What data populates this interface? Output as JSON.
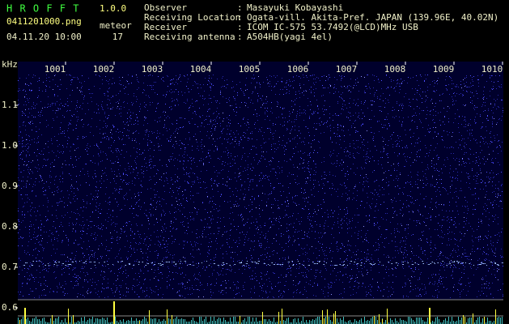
{
  "header": {
    "title": "H R O F F T",
    "version": "1.0.0",
    "filename": "0411201000.png",
    "meteor_label": "meteor",
    "datetime": "04.11.20 10:00",
    "meteor_count": "17"
  },
  "info": [
    {
      "label": "Observer",
      "value": "Masayuki Kobayashi"
    },
    {
      "label": "Receiving Location",
      "value": "Ogata-vill. Akita-Pref. JAPAN (139.96E, 40.02N)"
    },
    {
      "label": "Receiver",
      "value": "ICOM IC-575 53.7492(@LCD)MHz USB"
    },
    {
      "label": "Receiving antenna",
      "value": "A504HB(yagi 4el)"
    }
  ],
  "separator": ":",
  "axis": {
    "unit": "kHz",
    "yticks": [
      "1.1",
      "1.0",
      "0.9",
      "0.8",
      "0.7",
      "0.6"
    ],
    "xticks": [
      "1001",
      "1002",
      "1003",
      "1004",
      "1005",
      "1006",
      "1007",
      "1008",
      "1009",
      "1010"
    ]
  }
}
